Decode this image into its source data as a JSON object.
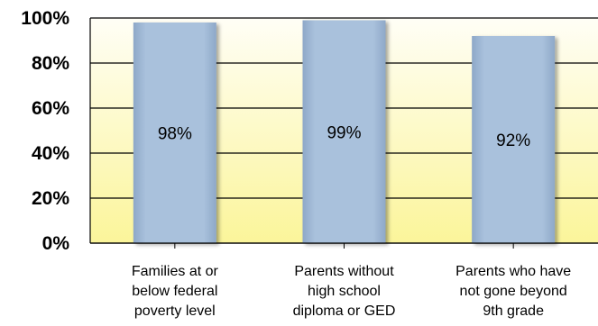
{
  "chart_data": {
    "type": "bar",
    "categories": [
      [
        "Families at or",
        "below federal",
        "poverty level"
      ],
      [
        "Parents without",
        "high school",
        "diploma or GED"
      ],
      [
        "Parents who have",
        "not gone beyond",
        "9th grade"
      ]
    ],
    "values": [
      98,
      99,
      92
    ],
    "data_labels": [
      "98%",
      "99%",
      "92%"
    ],
    "yticks": [
      "0%",
      "20%",
      "40%",
      "60%",
      "80%",
      "100%"
    ],
    "ylim": [
      0,
      100
    ],
    "grid": true,
    "legend": "none"
  },
  "colors": {
    "bar": "#a9c1dc",
    "bar_edge": "#8ea8c8",
    "plot_top": "#fffef6",
    "plot_bottom": "#fbf59a",
    "gridline": "#000000"
  }
}
